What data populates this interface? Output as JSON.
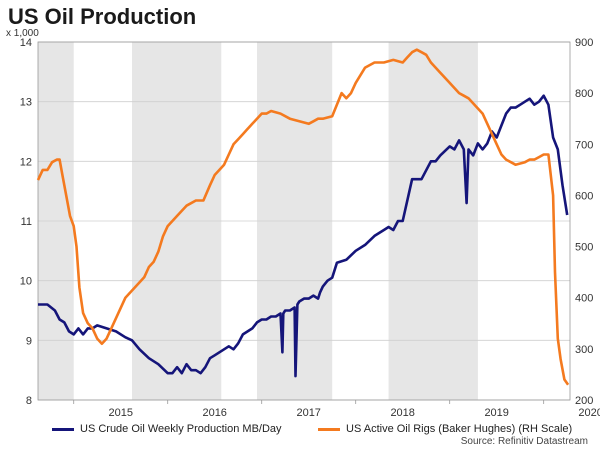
{
  "title": "US Oil Production",
  "left_unit": "x 1,000",
  "source": "Source: Refinitiv Datastream",
  "colors": {
    "series1": "#15157a",
    "series2": "#f47a1f",
    "shade": "#e6e6e6",
    "grid": "#cfcfcf"
  },
  "chart_data": {
    "type": "line",
    "title": "US Oil Production",
    "xlabel": "",
    "x_ticks": [
      "2015",
      "2016",
      "2017",
      "2018",
      "2019",
      "2020"
    ],
    "x_range": [
      2014.62,
      2020.28
    ],
    "y_left": {
      "label": "x 1,000",
      "lim": [
        8,
        14
      ],
      "ticks": [
        8,
        9,
        10,
        11,
        12,
        13,
        14
      ]
    },
    "y_right": {
      "label": "",
      "lim": [
        200,
        900
      ],
      "ticks": [
        200,
        300,
        400,
        500,
        600,
        700,
        800,
        900
      ]
    },
    "grid": true,
    "legend": "bottom",
    "shaded_periods": [
      [
        2014.62,
        2015.0
      ],
      [
        2015.62,
        2016.57
      ],
      [
        2016.95,
        2017.75
      ],
      [
        2018.35,
        2019.3
      ]
    ],
    "series": [
      {
        "name": "US Crude Oil Weekly Production MB/Day",
        "axis": "left",
        "x": [
          2014.62,
          2014.72,
          2014.8,
          2014.85,
          2014.9,
          2014.95,
          2015.0,
          2015.05,
          2015.1,
          2015.15,
          2015.2,
          2015.25,
          2015.35,
          2015.45,
          2015.55,
          2015.62,
          2015.7,
          2015.8,
          2015.9,
          2016.0,
          2016.05,
          2016.1,
          2016.15,
          2016.2,
          2016.25,
          2016.3,
          2016.35,
          2016.4,
          2016.45,
          2016.5,
          2016.55,
          2016.6,
          2016.65,
          2016.7,
          2016.75,
          2016.8,
          2016.85,
          2016.9,
          2016.95,
          2017.0,
          2017.05,
          2017.1,
          2017.15,
          2017.2,
          2017.22,
          2017.23,
          2017.25,
          2017.3,
          2017.35,
          2017.36,
          2017.38,
          2017.4,
          2017.45,
          2017.5,
          2017.55,
          2017.6,
          2017.62,
          2017.65,
          2017.7,
          2017.75,
          2017.8,
          2017.9,
          2018.0,
          2018.1,
          2018.2,
          2018.3,
          2018.35,
          2018.4,
          2018.45,
          2018.5,
          2018.6,
          2018.65,
          2018.7,
          2018.8,
          2018.85,
          2018.9,
          2019.0,
          2019.05,
          2019.1,
          2019.15,
          2019.18,
          2019.2,
          2019.25,
          2019.3,
          2019.35,
          2019.4,
          2019.45,
          2019.5,
          2019.55,
          2019.6,
          2019.65,
          2019.7,
          2019.75,
          2019.8,
          2019.85,
          2019.9,
          2019.95,
          2020.0,
          2020.05,
          2020.1,
          2020.15,
          2020.2,
          2020.25
        ],
        "values": [
          9.6,
          9.6,
          9.5,
          9.35,
          9.3,
          9.15,
          9.1,
          9.2,
          9.1,
          9.2,
          9.2,
          9.25,
          9.2,
          9.15,
          9.05,
          9.0,
          8.85,
          8.7,
          8.6,
          8.45,
          8.45,
          8.55,
          8.45,
          8.6,
          8.5,
          8.5,
          8.45,
          8.55,
          8.7,
          8.75,
          8.8,
          8.85,
          8.9,
          8.85,
          8.95,
          9.1,
          9.15,
          9.2,
          9.3,
          9.35,
          9.35,
          9.4,
          9.4,
          9.45,
          8.8,
          9.45,
          9.5,
          9.5,
          9.55,
          8.4,
          9.6,
          9.65,
          9.7,
          9.7,
          9.75,
          9.7,
          9.8,
          9.9,
          10.0,
          10.05,
          10.3,
          10.35,
          10.5,
          10.6,
          10.75,
          10.85,
          10.9,
          10.85,
          11.0,
          11.0,
          11.7,
          11.7,
          11.7,
          12.0,
          12.0,
          12.1,
          12.25,
          12.2,
          12.35,
          12.2,
          11.3,
          12.2,
          12.1,
          12.3,
          12.2,
          12.3,
          12.5,
          12.4,
          12.6,
          12.8,
          12.9,
          12.9,
          12.95,
          13.0,
          13.05,
          12.95,
          13.0,
          13.1,
          12.95,
          12.4,
          12.2,
          11.6,
          11.1
        ]
      },
      {
        "name": "US Active Oil Rigs (Baker Hughes) (RH Scale)",
        "axis": "right",
        "x": [
          2014.62,
          2014.67,
          2014.72,
          2014.77,
          2014.82,
          2014.85,
          2014.88,
          2014.92,
          2014.96,
          2015.0,
          2015.03,
          2015.06,
          2015.1,
          2015.15,
          2015.2,
          2015.25,
          2015.3,
          2015.35,
          2015.4,
          2015.45,
          2015.5,
          2015.55,
          2015.6,
          2015.65,
          2015.7,
          2015.75,
          2015.8,
          2015.85,
          2015.9,
          2015.95,
          2016.0,
          2016.1,
          2016.2,
          2016.3,
          2016.38,
          2016.45,
          2016.5,
          2016.55,
          2016.6,
          2016.65,
          2016.7,
          2016.75,
          2016.8,
          2016.85,
          2016.9,
          2016.95,
          2017.0,
          2017.05,
          2017.1,
          2017.2,
          2017.3,
          2017.4,
          2017.5,
          2017.55,
          2017.6,
          2017.65,
          2017.75,
          2017.85,
          2017.9,
          2017.95,
          2018.0,
          2018.1,
          2018.2,
          2018.25,
          2018.3,
          2018.4,
          2018.5,
          2018.55,
          2018.6,
          2018.65,
          2018.7,
          2018.75,
          2018.8,
          2018.85,
          2018.9,
          2019.0,
          2019.05,
          2019.1,
          2019.15,
          2019.2,
          2019.25,
          2019.3,
          2019.35,
          2019.4,
          2019.45,
          2019.5,
          2019.55,
          2019.6,
          2019.7,
          2019.8,
          2019.85,
          2019.9,
          2019.95,
          2020.0,
          2020.05,
          2020.1,
          2020.12,
          2020.15,
          2020.18,
          2020.22,
          2020.26
        ],
        "values": [
          630,
          650,
          650,
          665,
          670,
          670,
          640,
          600,
          560,
          540,
          500,
          420,
          370,
          350,
          340,
          320,
          310,
          320,
          340,
          360,
          380,
          400,
          410,
          420,
          430,
          440,
          460,
          470,
          490,
          520,
          540,
          560,
          580,
          590,
          590,
          620,
          640,
          650,
          660,
          680,
          700,
          710,
          720,
          730,
          740,
          750,
          760,
          760,
          765,
          760,
          750,
          745,
          740,
          745,
          750,
          750,
          755,
          800,
          790,
          800,
          820,
          850,
          860,
          860,
          860,
          865,
          860,
          870,
          880,
          885,
          880,
          875,
          860,
          850,
          840,
          820,
          810,
          800,
          795,
          790,
          780,
          770,
          760,
          740,
          720,
          700,
          680,
          670,
          660,
          665,
          670,
          670,
          675,
          680,
          680,
          600,
          450,
          320,
          280,
          240,
          230
        ]
      }
    ]
  }
}
